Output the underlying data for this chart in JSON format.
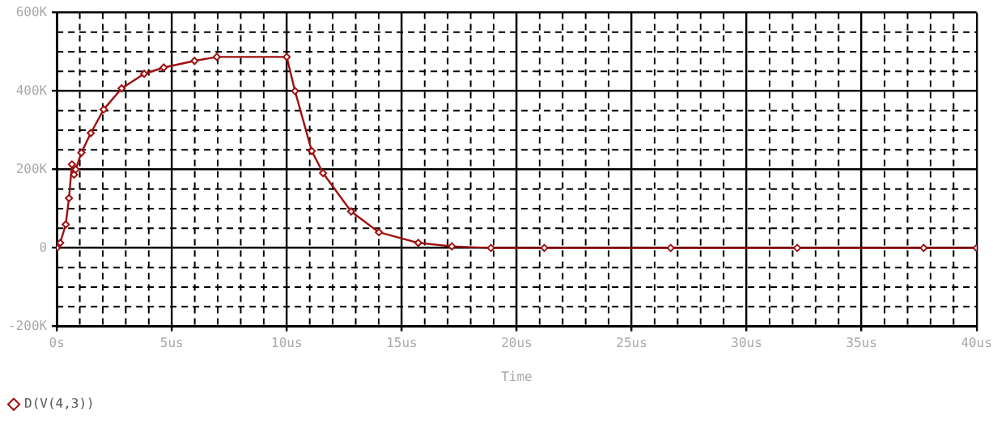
{
  "chart_data": {
    "type": "line",
    "xlabel": "Time",
    "x": [
      0,
      0.15,
      0.39,
      0.53,
      0.66,
      0.75,
      0.82,
      1.07,
      1.48,
      2.04,
      2.82,
      3.8,
      4.65,
      5.99,
      6.96,
      10.0,
      10.36,
      11.09,
      11.58,
      12.8,
      14.01,
      15.72,
      17.18,
      18.88,
      21.2,
      26.7,
      32.2,
      37.7,
      40
    ],
    "series": [
      {
        "name": "D(V(4,3))",
        "color": "#a01010",
        "values": [
          0,
          13000,
          60000,
          127000,
          213000,
          187000,
          200000,
          243000,
          293000,
          353000,
          407000,
          444000,
          460000,
          477000,
          487000,
          487000,
          400000,
          247000,
          191000,
          93000,
          40000,
          13000,
          4000,
          0,
          0,
          0,
          0,
          0,
          0
        ]
      }
    ],
    "xlim": [
      0,
      40
    ],
    "xticks": [
      {
        "value": 0,
        "label": "0s"
      },
      {
        "value": 5,
        "label": "5us"
      },
      {
        "value": 10,
        "label": "10us"
      },
      {
        "value": 15,
        "label": "15us"
      },
      {
        "value": 20,
        "label": "20us"
      },
      {
        "value": 25,
        "label": "25us"
      },
      {
        "value": 30,
        "label": "30us"
      },
      {
        "value": 35,
        "label": "35us"
      },
      {
        "value": 40,
        "label": "40us"
      }
    ],
    "ylim": [
      -200000,
      600000
    ],
    "yticks": [
      {
        "value": -200000,
        "label": "-200K"
      },
      {
        "value": 0,
        "label": "0"
      },
      {
        "value": 200000,
        "label": "200K"
      },
      {
        "value": 400000,
        "label": "400K"
      },
      {
        "value": 600000,
        "label": "600K"
      }
    ],
    "grid": true,
    "legend": "bottom left",
    "marker": "diamond",
    "line_style": "solid"
  }
}
